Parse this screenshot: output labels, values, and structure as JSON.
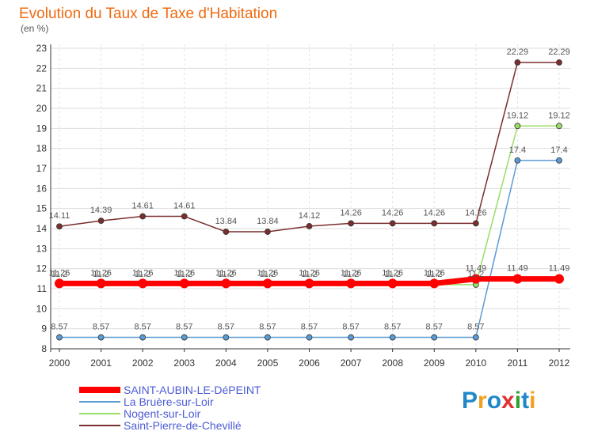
{
  "chart_data": {
    "type": "line",
    "title": "Evolution du Taux de Taxe d'Habitation",
    "subtitle": "(en %)",
    "xlabel": "",
    "ylabel": "",
    "categories": [
      "2000",
      "2001",
      "2002",
      "2003",
      "2004",
      "2005",
      "2006",
      "2007",
      "2008",
      "2009",
      "2010",
      "2011",
      "2012"
    ],
    "ylim": [
      8,
      23
    ],
    "yticks": [
      8,
      9,
      10,
      11,
      12,
      13,
      14,
      15,
      16,
      17,
      18,
      19,
      20,
      21,
      22,
      23
    ],
    "series": [
      {
        "name": "SAINT-AUBIN-LE-DéPEINT",
        "color": "#ff0000",
        "values": [
          11.26,
          11.26,
          11.26,
          11.26,
          11.26,
          11.26,
          11.26,
          11.26,
          11.26,
          11.26,
          11.49,
          11.49,
          11.49
        ],
        "labels": [
          "11.26",
          "11.26",
          "11.26",
          "11.26",
          "11.26",
          "11.26",
          "11.26",
          "11.26",
          "11.26",
          "11.26",
          "11.49",
          "11.49",
          "11.49"
        ]
      },
      {
        "name": "La Bruère-sur-Loir",
        "color": "#5b9bd5",
        "values": [
          8.57,
          8.57,
          8.57,
          8.57,
          8.57,
          8.57,
          8.57,
          8.57,
          8.57,
          8.57,
          8.57,
          17.4,
          17.4
        ],
        "labels": [
          "8.57",
          "8.57",
          "8.57",
          "8.57",
          "8.57",
          "8.57",
          "8.57",
          "8.57",
          "8.57",
          "8.57",
          "8.57",
          "17.4",
          "17.4"
        ]
      },
      {
        "name": "Nogent-sur-Loir",
        "color": "#99dd66",
        "values": [
          11.2,
          11.2,
          11.2,
          11.2,
          11.2,
          11.2,
          11.2,
          11.2,
          11.2,
          11.2,
          11.2,
          19.12,
          19.12
        ],
        "labels": [
          "11.2",
          "11.2",
          "11.2",
          "11.2",
          "11.2",
          "11.2",
          "11.2",
          "11.2",
          "11.2",
          "11.2",
          "11.2",
          "19.12",
          "19.12"
        ]
      },
      {
        "name": "Saint-Pierre-de-Chevillé",
        "color": "#7b2e2e",
        "values": [
          14.11,
          14.39,
          14.61,
          14.61,
          13.84,
          13.84,
          14.12,
          14.26,
          14.26,
          14.26,
          14.26,
          22.29,
          22.29
        ],
        "labels": [
          "14.11",
          "14.39",
          "14.61",
          "14.61",
          "13.84",
          "13.84",
          "14.12",
          "14.26",
          "14.26",
          "14.26",
          "14.26",
          "22.29",
          "22.29"
        ]
      }
    ],
    "legend_position": "bottom-left"
  },
  "branding": {
    "logo_letters": [
      "P",
      "r",
      "o",
      "x",
      "i",
      "t",
      "i"
    ],
    "logo_colors": [
      "#1e88c8",
      "#f0a020",
      "#1e88c8",
      "#e03030",
      "#30a030",
      "#1e88c8",
      "#f0a020"
    ]
  }
}
